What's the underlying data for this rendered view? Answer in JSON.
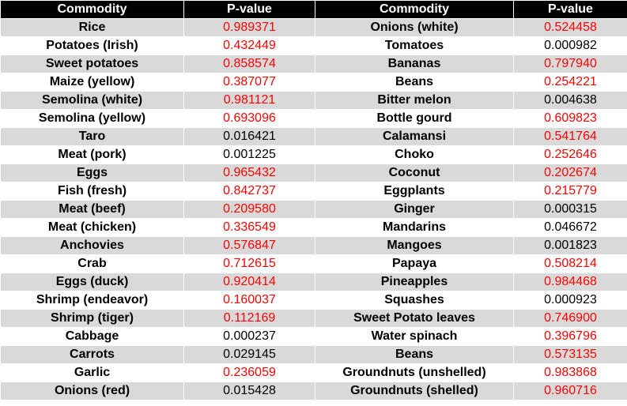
{
  "headers": [
    "Commodity",
    "P-value",
    "Commodity",
    "P-value"
  ],
  "colors": {
    "highlight": "#ff0000",
    "normal": "#000000",
    "header_bg": "#000000",
    "stripe": "#d9d9d9"
  },
  "rows": [
    {
      "left": {
        "name": "Rice",
        "p": "0.989371",
        "red": true
      },
      "right": {
        "name": "Onions (white)",
        "p": "0.524458",
        "red": true
      }
    },
    {
      "left": {
        "name": "Potatoes (Irish)",
        "p": "0.432449",
        "red": true
      },
      "right": {
        "name": "Tomatoes",
        "p": "0.000982",
        "red": false
      }
    },
    {
      "left": {
        "name": "Sweet potatoes",
        "p": "0.858574",
        "red": true
      },
      "right": {
        "name": "Bananas",
        "p": "0.797940",
        "red": true
      }
    },
    {
      "left": {
        "name": "Maize (yellow)",
        "p": "0.387077",
        "red": true
      },
      "right": {
        "name": "Beans",
        "p": "0.254221",
        "red": true
      }
    },
    {
      "left": {
        "name": "Semolina (white)",
        "p": "0.981121",
        "red": true
      },
      "right": {
        "name": "Bitter melon",
        "p": "0.004638",
        "red": false
      }
    },
    {
      "left": {
        "name": "Semolina (yellow)",
        "p": "0.693096",
        "red": true
      },
      "right": {
        "name": "Bottle gourd",
        "p": "0.609823",
        "red": true
      }
    },
    {
      "left": {
        "name": "Taro",
        "p": "0.016421",
        "red": false
      },
      "right": {
        "name": "Calamansi",
        "p": "0.541764",
        "red": true
      }
    },
    {
      "left": {
        "name": "Meat (pork)",
        "p": "0.001225",
        "red": false
      },
      "right": {
        "name": "Choko",
        "p": "0.252646",
        "red": true
      }
    },
    {
      "left": {
        "name": "Eggs",
        "p": "0.965432",
        "red": true
      },
      "right": {
        "name": "Coconut",
        "p": "0.202674",
        "red": true
      }
    },
    {
      "left": {
        "name": "Fish (fresh)",
        "p": "0.842737",
        "red": true
      },
      "right": {
        "name": "Eggplants",
        "p": "0.215779",
        "red": true
      }
    },
    {
      "left": {
        "name": "Meat (beef)",
        "p": "0.209580",
        "red": true
      },
      "right": {
        "name": "Ginger",
        "p": "0.000315",
        "red": false
      }
    },
    {
      "left": {
        "name": "Meat (chicken)",
        "p": "0.336549",
        "red": true
      },
      "right": {
        "name": "Mandarins",
        "p": "0.046672",
        "red": false
      }
    },
    {
      "left": {
        "name": "Anchovies",
        "p": "0.576847",
        "red": true
      },
      "right": {
        "name": "Mangoes",
        "p": "0.001823",
        "red": false
      }
    },
    {
      "left": {
        "name": "Crab",
        "p": "0.712615",
        "red": true
      },
      "right": {
        "name": "Papaya",
        "p": "0.508214",
        "red": true
      }
    },
    {
      "left": {
        "name": "Eggs (duck)",
        "p": "0.920414",
        "red": true
      },
      "right": {
        "name": "Pineapples",
        "p": "0.984468",
        "red": true
      }
    },
    {
      "left": {
        "name": "Shrimp (endeavor)",
        "p": "0.160037",
        "red": true
      },
      "right": {
        "name": "Squashes",
        "p": "0.000923",
        "red": false
      }
    },
    {
      "left": {
        "name": "Shrimp (tiger)",
        "p": "0.112169",
        "red": true
      },
      "right": {
        "name": "Sweet Potato leaves",
        "p": "0.746900",
        "red": true
      }
    },
    {
      "left": {
        "name": "Cabbage",
        "p": "0.000237",
        "red": false
      },
      "right": {
        "name": "Water spinach",
        "p": "0.396796",
        "red": true
      }
    },
    {
      "left": {
        "name": "Carrots",
        "p": "0.029145",
        "red": false
      },
      "right": {
        "name": "Beans",
        "p": "0.573135",
        "red": true
      }
    },
    {
      "left": {
        "name": "Garlic",
        "p": "0.236059",
        "red": true
      },
      "right": {
        "name": "Groundnuts (unshelled)",
        "p": "0.983868",
        "red": true
      }
    },
    {
      "left": {
        "name": "Onions (red)",
        "p": "0.015428",
        "red": false
      },
      "right": {
        "name": "Groundnuts (shelled)",
        "p": "0.960716",
        "red": true
      }
    }
  ]
}
